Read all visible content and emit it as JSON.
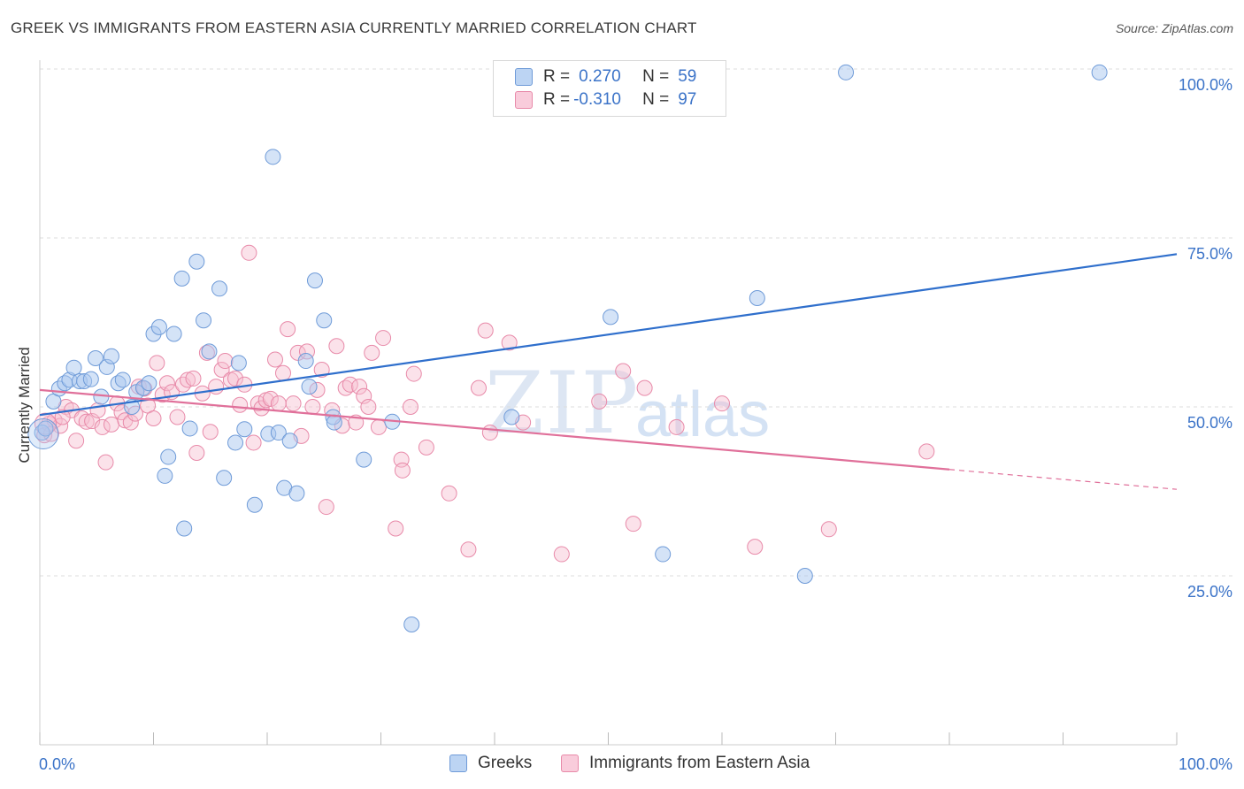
{
  "title": "GREEK VS IMMIGRANTS FROM EASTERN ASIA CURRENTLY MARRIED CORRELATION CHART",
  "source": "Source: ZipAtlas.com",
  "watermark": {
    "zip": "ZIP",
    "atlas": "atlas"
  },
  "legend": {
    "r_label": "R =",
    "n_label": "N =",
    "rows": [
      {
        "r": "0.270",
        "n": "59"
      },
      {
        "r": "-0.310",
        "n": "97"
      }
    ]
  },
  "colors": {
    "blue_fill": "#aac8f0",
    "blue_stroke": "#6f9bd8",
    "blue_line": "#2f6fcc",
    "pink_fill": "#f7bfd1",
    "pink_stroke": "#e88aa9",
    "pink_line": "#e0709a",
    "axis_text": "#3b73c8"
  },
  "chart_data": {
    "type": "scatter",
    "title": "GREEK VS IMMIGRANTS FROM EASTERN ASIA CURRENTLY MARRIED CORRELATION CHART",
    "xlabel": "",
    "ylabel": "Currently Married",
    "xlim": [
      0,
      100
    ],
    "ylim": [
      0,
      100
    ],
    "x_ticks": [
      "0.0%",
      "100.0%"
    ],
    "y_ticks": [
      {
        "value": 25,
        "label": "25.0%"
      },
      {
        "value": 50,
        "label": "50.0%"
      },
      {
        "value": 75,
        "label": "75.0%"
      },
      {
        "value": 100,
        "label": "100.0%"
      }
    ],
    "grid": "horizontal dashed",
    "legend_position": "top-center",
    "series": [
      {
        "name": "Greeks",
        "trend": {
          "x0": 0,
          "y0": 48.8,
          "x1": 100,
          "y1": 72.6,
          "dashed_from": null
        },
        "points": [
          [
            0.2,
            46.2
          ],
          [
            0.5,
            46.8
          ],
          [
            1.2,
            50.8
          ],
          [
            1.7,
            52.7
          ],
          [
            2.2,
            53.5
          ],
          [
            2.6,
            54.0
          ],
          [
            3.0,
            55.8
          ],
          [
            3.5,
            53.8
          ],
          [
            3.9,
            53.8
          ],
          [
            4.5,
            54.1
          ],
          [
            4.9,
            57.2
          ],
          [
            5.4,
            51.5
          ],
          [
            5.9,
            55.9
          ],
          [
            6.3,
            57.5
          ],
          [
            6.9,
            53.5
          ],
          [
            7.3,
            54.0
          ],
          [
            8.1,
            50.0
          ],
          [
            8.5,
            52.2
          ],
          [
            9.1,
            52.8
          ],
          [
            9.6,
            53.5
          ],
          [
            10.0,
            60.8
          ],
          [
            10.5,
            61.8
          ],
          [
            11.3,
            42.6
          ],
          [
            11.0,
            39.8
          ],
          [
            11.8,
            60.8
          ],
          [
            12.5,
            69.0
          ],
          [
            12.7,
            32.0
          ],
          [
            13.2,
            46.8
          ],
          [
            13.8,
            71.5
          ],
          [
            14.4,
            62.8
          ],
          [
            14.9,
            58.2
          ],
          [
            15.8,
            67.5
          ],
          [
            16.2,
            39.5
          ],
          [
            17.2,
            44.7
          ],
          [
            17.5,
            56.5
          ],
          [
            18.0,
            46.7
          ],
          [
            18.9,
            35.5
          ],
          [
            20.1,
            46.0
          ],
          [
            20.5,
            87.0
          ],
          [
            21.0,
            46.2
          ],
          [
            21.5,
            38.0
          ],
          [
            22.0,
            45.0
          ],
          [
            22.6,
            37.2
          ],
          [
            23.4,
            56.8
          ],
          [
            23.7,
            53.0
          ],
          [
            24.2,
            68.7
          ],
          [
            25.0,
            62.8
          ],
          [
            25.8,
            48.5
          ],
          [
            25.9,
            47.7
          ],
          [
            28.5,
            42.2
          ],
          [
            31.0,
            47.8
          ],
          [
            41.5,
            48.5
          ],
          [
            50.2,
            63.3
          ],
          [
            54.8,
            28.2
          ],
          [
            63.1,
            66.1
          ],
          [
            67.3,
            25.0
          ],
          [
            32.7,
            17.8
          ],
          [
            70.9,
            99.5
          ],
          [
            93.2,
            99.5
          ]
        ]
      },
      {
        "name": "Immigrants from Eastern Asia",
        "trend": {
          "x0": 0,
          "y0": 52.5,
          "x1": 100,
          "y1": 37.8,
          "dashed_from": 80
        },
        "points": [
          [
            0.4,
            45.8
          ],
          [
            0.8,
            47.5
          ],
          [
            1.3,
            48.0
          ],
          [
            1.8,
            47.2
          ],
          [
            2.3,
            50.0
          ],
          [
            2.8,
            49.5
          ],
          [
            3.2,
            45.0
          ],
          [
            3.7,
            48.3
          ],
          [
            4.1,
            47.8
          ],
          [
            4.6,
            47.9
          ],
          [
            5.1,
            49.5
          ],
          [
            5.5,
            47.0
          ],
          [
            5.8,
            41.8
          ],
          [
            6.3,
            47.4
          ],
          [
            6.8,
            50.5
          ],
          [
            7.2,
            49.2
          ],
          [
            7.5,
            48.0
          ],
          [
            8.0,
            47.7
          ],
          [
            8.4,
            49.0
          ],
          [
            8.7,
            53.0
          ],
          [
            9.2,
            52.7
          ],
          [
            9.5,
            50.2
          ],
          [
            10.0,
            48.3
          ],
          [
            10.3,
            56.5
          ],
          [
            10.8,
            51.8
          ],
          [
            11.2,
            53.5
          ],
          [
            11.6,
            52.2
          ],
          [
            12.1,
            48.5
          ],
          [
            12.6,
            53.3
          ],
          [
            13.0,
            54.0
          ],
          [
            13.5,
            54.2
          ],
          [
            13.8,
            43.2
          ],
          [
            14.3,
            52.0
          ],
          [
            14.7,
            58.0
          ],
          [
            15.0,
            46.3
          ],
          [
            15.5,
            53.0
          ],
          [
            16.0,
            55.5
          ],
          [
            16.3,
            56.8
          ],
          [
            16.8,
            54.0
          ],
          [
            17.2,
            54.2
          ],
          [
            17.6,
            50.3
          ],
          [
            18.0,
            53.3
          ],
          [
            18.4,
            72.8
          ],
          [
            18.8,
            44.7
          ],
          [
            19.2,
            50.5
          ],
          [
            19.5,
            49.8
          ],
          [
            19.9,
            51.0
          ],
          [
            20.3,
            51.2
          ],
          [
            20.7,
            57.0
          ],
          [
            21.0,
            50.5
          ],
          [
            21.4,
            55.0
          ],
          [
            21.8,
            61.5
          ],
          [
            22.3,
            50.5
          ],
          [
            22.7,
            58.0
          ],
          [
            23.0,
            45.7
          ],
          [
            23.5,
            58.2
          ],
          [
            24.0,
            50.0
          ],
          [
            24.4,
            52.5
          ],
          [
            24.8,
            55.5
          ],
          [
            25.2,
            35.2
          ],
          [
            25.7,
            49.5
          ],
          [
            26.1,
            59.0
          ],
          [
            26.6,
            47.2
          ],
          [
            26.9,
            52.8
          ],
          [
            27.3,
            53.3
          ],
          [
            27.8,
            47.7
          ],
          [
            28.1,
            53.0
          ],
          [
            28.5,
            51.6
          ],
          [
            28.9,
            50.0
          ],
          [
            29.2,
            58.0
          ],
          [
            29.8,
            47.0
          ],
          [
            30.2,
            60.2
          ],
          [
            31.3,
            32.0
          ],
          [
            31.8,
            42.2
          ],
          [
            31.9,
            40.6
          ],
          [
            32.6,
            50.0
          ],
          [
            32.9,
            54.9
          ],
          [
            34.0,
            44.0
          ],
          [
            36.0,
            37.2
          ],
          [
            37.7,
            28.9
          ],
          [
            38.6,
            52.8
          ],
          [
            39.2,
            61.3
          ],
          [
            39.6,
            46.2
          ],
          [
            41.3,
            59.5
          ],
          [
            42.5,
            47.7
          ],
          [
            45.9,
            28.2
          ],
          [
            49.2,
            50.8
          ],
          [
            51.3,
            55.3
          ],
          [
            52.2,
            32.7
          ],
          [
            62.9,
            29.3
          ],
          [
            69.4,
            31.9
          ],
          [
            78.0,
            43.4
          ],
          [
            53.2,
            52.8
          ],
          [
            56.0,
            47.0
          ],
          [
            60.0,
            50.5
          ],
          [
            2.0,
            48.5
          ],
          [
            1.0,
            46.0
          ]
        ]
      }
    ]
  }
}
